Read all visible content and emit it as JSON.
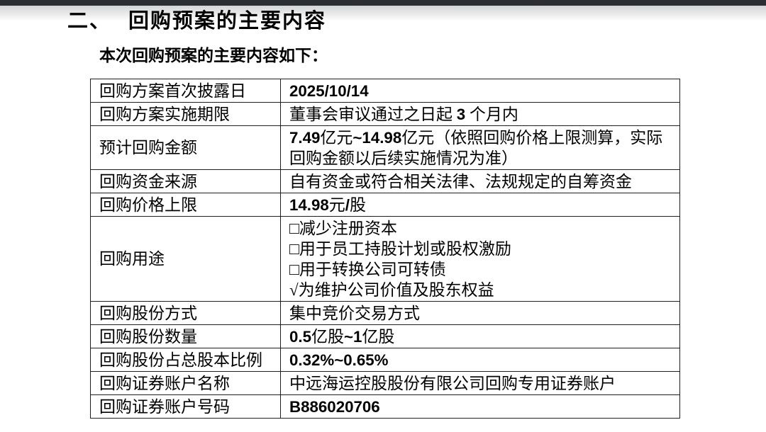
{
  "colors": {
    "topbar": "#2b2f33",
    "shadow": "#d3d4d5",
    "border": "#1d1d1d",
    "text": "#000000"
  },
  "page": {
    "heading": {
      "number": "二、",
      "title": "回购预案的主要内容"
    },
    "intro": "本次回购预案的主要内容如下："
  },
  "table": {
    "rows": [
      {
        "label": "回购方案首次披露日",
        "lines": [
          "2025/10/14"
        ]
      },
      {
        "label": "回购方案实施期限",
        "lines": [
          "董事会审议通过之日起 3 个月内"
        ]
      },
      {
        "label": "预计回购金额",
        "lines": [
          "7.49亿元~14.98亿元（依照回购价格上限测算，实际",
          "回购金额以后续实施情况为准）"
        ]
      },
      {
        "label": "回购资金来源",
        "lines": [
          "自有资金或符合相关法律、法规规定的自筹资金"
        ]
      },
      {
        "label": "回购价格上限",
        "lines": [
          "14.98元/股"
        ]
      },
      {
        "label": "回购用途",
        "lines": [
          "□减少注册资本",
          "□用于员工持股计划或股权激励",
          "□用于转换公司可转债",
          "√为维护公司价值及股东权益"
        ]
      },
      {
        "label": "回购股份方式",
        "lines": [
          "集中竞价交易方式"
        ]
      },
      {
        "label": "回购股份数量",
        "lines": [
          "0.5亿股~1亿股"
        ]
      },
      {
        "label": "回购股份占总股本比例",
        "lines": [
          "0.32%~0.65%"
        ]
      },
      {
        "label": "回购证券账户名称",
        "lines": [
          "中远海运控股股份有限公司回购专用证券账户"
        ]
      },
      {
        "label": "回购证券账户号码",
        "lines": [
          "B886020706"
        ]
      }
    ]
  }
}
